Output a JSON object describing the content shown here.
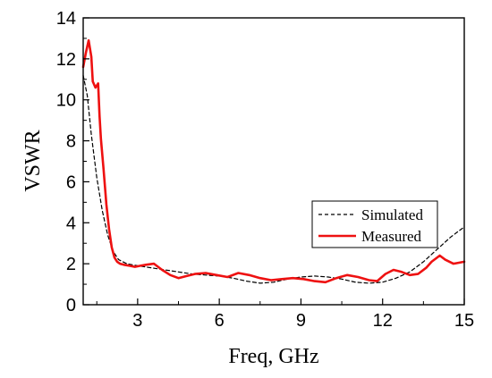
{
  "chart_data": {
    "type": "line",
    "title": "",
    "xlabel": "Freq, GHz",
    "ylabel": "VSWR",
    "xlim": [
      1,
      15
    ],
    "ylim": [
      0,
      14
    ],
    "x_ticks": [
      3,
      6,
      9,
      12,
      15
    ],
    "y_ticks": [
      0,
      2,
      4,
      6,
      8,
      10,
      12,
      14
    ],
    "grid": false,
    "legend_position": "bottom-right",
    "series": [
      {
        "name": "Simulated",
        "style": "dashed",
        "color": "#000000",
        "x": [
          1.0,
          1.15,
          1.3,
          1.5,
          1.7,
          1.9,
          2.1,
          2.3,
          2.6,
          3.0,
          3.5,
          4.0,
          4.5,
          5.0,
          5.5,
          6.0,
          6.5,
          7.0,
          7.5,
          8.0,
          8.5,
          9.0,
          9.5,
          10.0,
          10.5,
          11.0,
          11.5,
          12.0,
          12.5,
          13.0,
          13.5,
          14.0,
          14.5,
          15.0
        ],
        "y": [
          11.2,
          10.2,
          8.3,
          6.2,
          4.6,
          3.4,
          2.6,
          2.2,
          2.0,
          1.9,
          1.8,
          1.7,
          1.6,
          1.5,
          1.45,
          1.4,
          1.3,
          1.15,
          1.05,
          1.1,
          1.25,
          1.35,
          1.4,
          1.35,
          1.25,
          1.1,
          1.05,
          1.1,
          1.3,
          1.6,
          2.1,
          2.7,
          3.3,
          3.8
        ]
      },
      {
        "name": "Measured",
        "style": "solid",
        "color": "#ee1111",
        "x": [
          1.0,
          1.1,
          1.2,
          1.3,
          1.35,
          1.45,
          1.55,
          1.6,
          1.65,
          1.75,
          1.85,
          1.95,
          2.05,
          2.15,
          2.25,
          2.35,
          2.5,
          2.7,
          2.9,
          3.1,
          3.3,
          3.6,
          3.9,
          4.2,
          4.5,
          4.8,
          5.1,
          5.5,
          5.9,
          6.3,
          6.7,
          7.1,
          7.5,
          7.9,
          8.3,
          8.7,
          9.1,
          9.5,
          9.9,
          10.3,
          10.7,
          11.1,
          11.5,
          11.8,
          12.1,
          12.4,
          12.7,
          13.0,
          13.3,
          13.6,
          13.8,
          14.1,
          14.3,
          14.6,
          15.0
        ],
        "y": [
          11.6,
          12.3,
          12.9,
          12.1,
          10.9,
          10.6,
          10.8,
          9.2,
          8.1,
          6.6,
          4.9,
          3.7,
          2.8,
          2.3,
          2.1,
          2.0,
          1.95,
          1.9,
          1.85,
          1.9,
          1.95,
          2.0,
          1.7,
          1.45,
          1.3,
          1.4,
          1.5,
          1.55,
          1.45,
          1.35,
          1.55,
          1.45,
          1.3,
          1.2,
          1.25,
          1.3,
          1.25,
          1.15,
          1.1,
          1.3,
          1.45,
          1.35,
          1.2,
          1.15,
          1.5,
          1.7,
          1.6,
          1.45,
          1.5,
          1.8,
          2.1,
          2.4,
          2.2,
          2.0,
          2.1
        ]
      }
    ]
  }
}
